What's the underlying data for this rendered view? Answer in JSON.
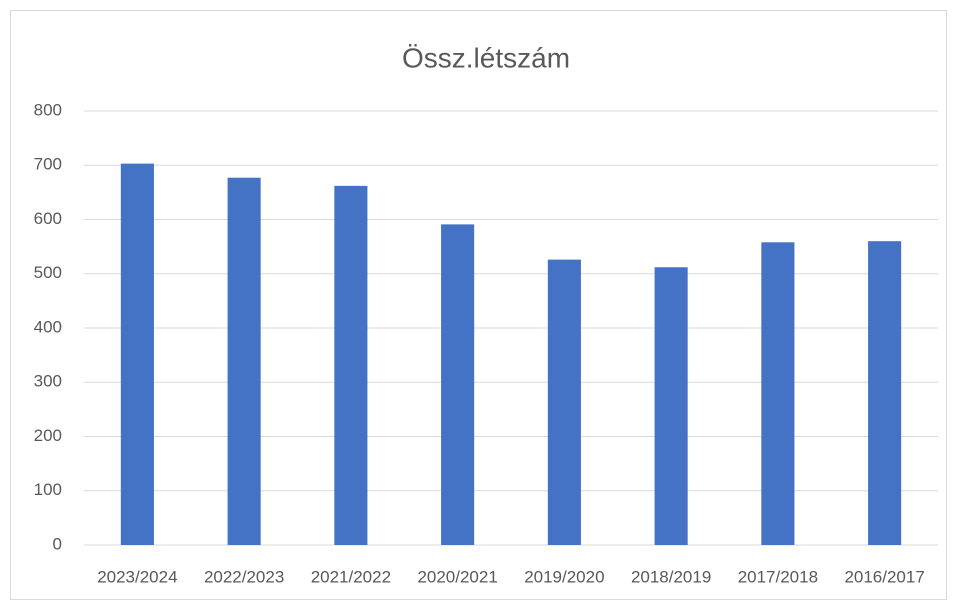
{
  "chart_data": {
    "type": "bar",
    "title": "Össz.létszám",
    "categories": [
      "2023/2024",
      "2022/2023",
      "2021/2022",
      "2020/2021",
      "2019/2020",
      "2018/2019",
      "2017/2018",
      "2016/2017"
    ],
    "values": [
      703,
      677,
      662,
      591,
      526,
      512,
      558,
      560
    ],
    "color": "#4472c4",
    "ylim": [
      0,
      800
    ],
    "yticks": [
      0,
      100,
      200,
      300,
      400,
      500,
      600,
      700,
      800
    ],
    "grid": true
  }
}
